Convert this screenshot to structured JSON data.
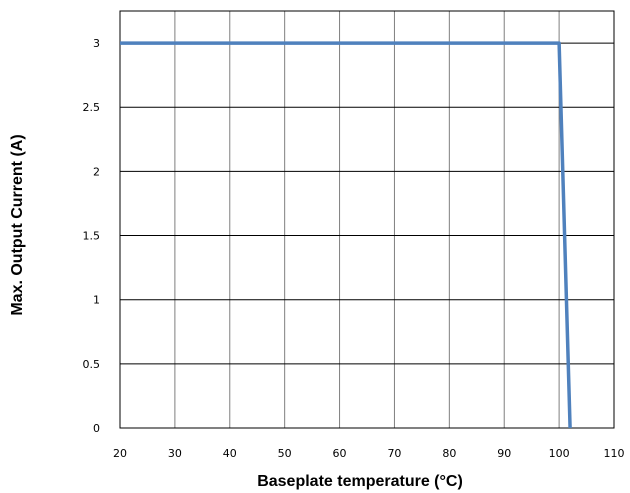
{
  "chart_data": {
    "type": "line",
    "title": "",
    "xlabel": "Baseplate temperature (°C)",
    "ylabel": "Max. Output Current (A)",
    "xlim": [
      20,
      110
    ],
    "ylim": [
      0,
      3.25
    ],
    "xticks": [
      20,
      30,
      40,
      50,
      60,
      70,
      80,
      90,
      100,
      110
    ],
    "yticks": [
      0,
      0.5,
      1,
      1.5,
      2,
      2.5,
      3
    ],
    "ytick_labels": [
      "0",
      "0.5",
      "1",
      "1.5",
      "2",
      "2.5",
      "3"
    ],
    "grid": true,
    "legend": "none",
    "series": [
      {
        "color": "#4f81bd",
        "x": [
          20,
          100,
          102
        ],
        "y": [
          3,
          3,
          0
        ]
      }
    ]
  }
}
